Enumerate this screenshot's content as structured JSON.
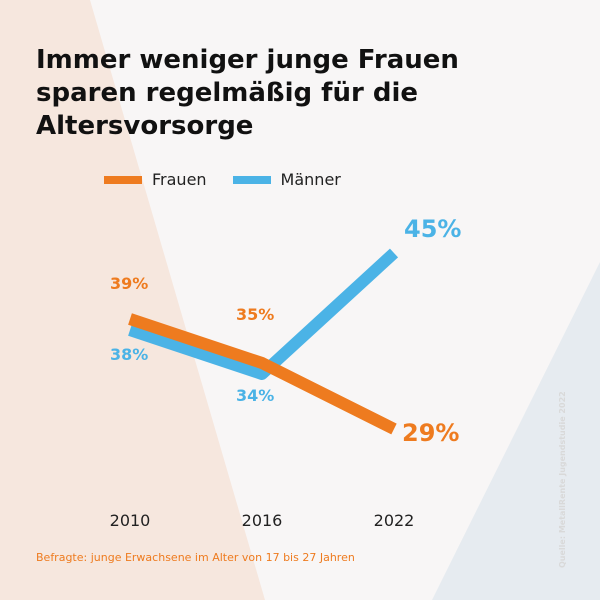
{
  "title": "Immer weniger junge Frauen sparen regelmäßig für die Altersvorsorge",
  "footnote": "Befragte: junge Erwachsene im Alter von 17 bis 27 Jahren",
  "source": "Quelle: MetallRente Jugendstudie 2022",
  "colors": {
    "frauen": "#ee7b1f",
    "maenner": "#4bb3e6",
    "background": "#f8f6f6",
    "background_left": "#f6e7de",
    "background_right": "#e6ebf0"
  },
  "chart_data": {
    "type": "line",
    "categories": [
      "2010",
      "2016",
      "2022"
    ],
    "series": [
      {
        "key": "frauen",
        "name": "Frauen",
        "values": [
          39,
          35,
          29
        ],
        "labels": [
          "39%",
          "35%",
          "29%"
        ],
        "color": "#ee7b1f"
      },
      {
        "key": "maenner",
        "name": "Männer",
        "values": [
          38,
          34,
          45
        ],
        "labels": [
          "38%",
          "34%",
          "45%"
        ],
        "color": "#4bb3e6"
      }
    ],
    "ylabel": "",
    "xlabel": "",
    "grid": false,
    "legend": "top-left"
  }
}
